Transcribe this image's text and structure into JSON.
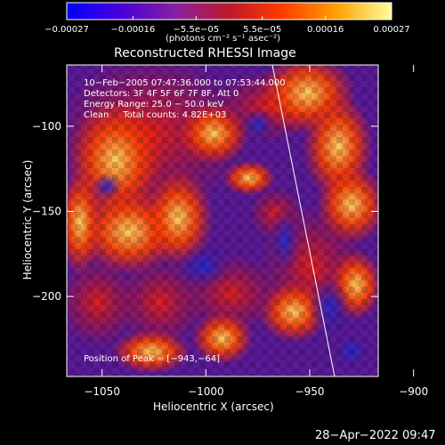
{
  "chart_data": {
    "type": "heatmap",
    "title": "Reconstructed RHESSI Image",
    "xlabel": "Heliocentric X (arcsec)",
    "ylabel": "Heliocentric Y (arcsec)",
    "xlim": [
      -1067,
      -917
    ],
    "ylim": [
      -247,
      -64
    ],
    "x_ticks": [
      -1050,
      -1000,
      -950,
      -900
    ],
    "x_tick_labels": [
      "−1050",
      "−1000",
      "−950",
      "−900"
    ],
    "y_ticks": [
      -100,
      -150,
      -200
    ],
    "y_tick_labels": [
      "−100",
      "−150",
      "−200"
    ],
    "colorbar": {
      "ticks": [
        -0.00027,
        -0.00016,
        -5.5e-05,
        5.5e-05,
        0.00016,
        0.00027
      ],
      "tick_labels": [
        "−0.00027",
        "−0.00016",
        "−5.5e−05",
        "5.5e−05",
        "0.00016",
        "0.00027"
      ],
      "range": [
        -0.00027,
        0.00027
      ],
      "unit_label": "(photons cm⁻² s⁻¹ asec⁻²)",
      "colors": [
        "#0000ff",
        "#5a00c8",
        "#8c1e96",
        "#c81e1e",
        "#f05000",
        "#ffa800",
        "#ffff80"
      ]
    },
    "annotations": [
      "10−Feb−2005 07:47:36.000 to 07:53:44.000",
      "Detectors: 3F 4F 5F 6F 7F 8F, Att 0",
      "Energy Range: 25.0 − 50.0 keV",
      "Clean     Total counts: 4.82E+03",
      "Position of Peak = [−943,−64]"
    ],
    "limb_line": {
      "x": [
        -968,
        -938
      ],
      "y": [
        -64,
        -247
      ]
    }
  },
  "footer": {
    "timestamp": "28−Apr−2022 09:47"
  }
}
